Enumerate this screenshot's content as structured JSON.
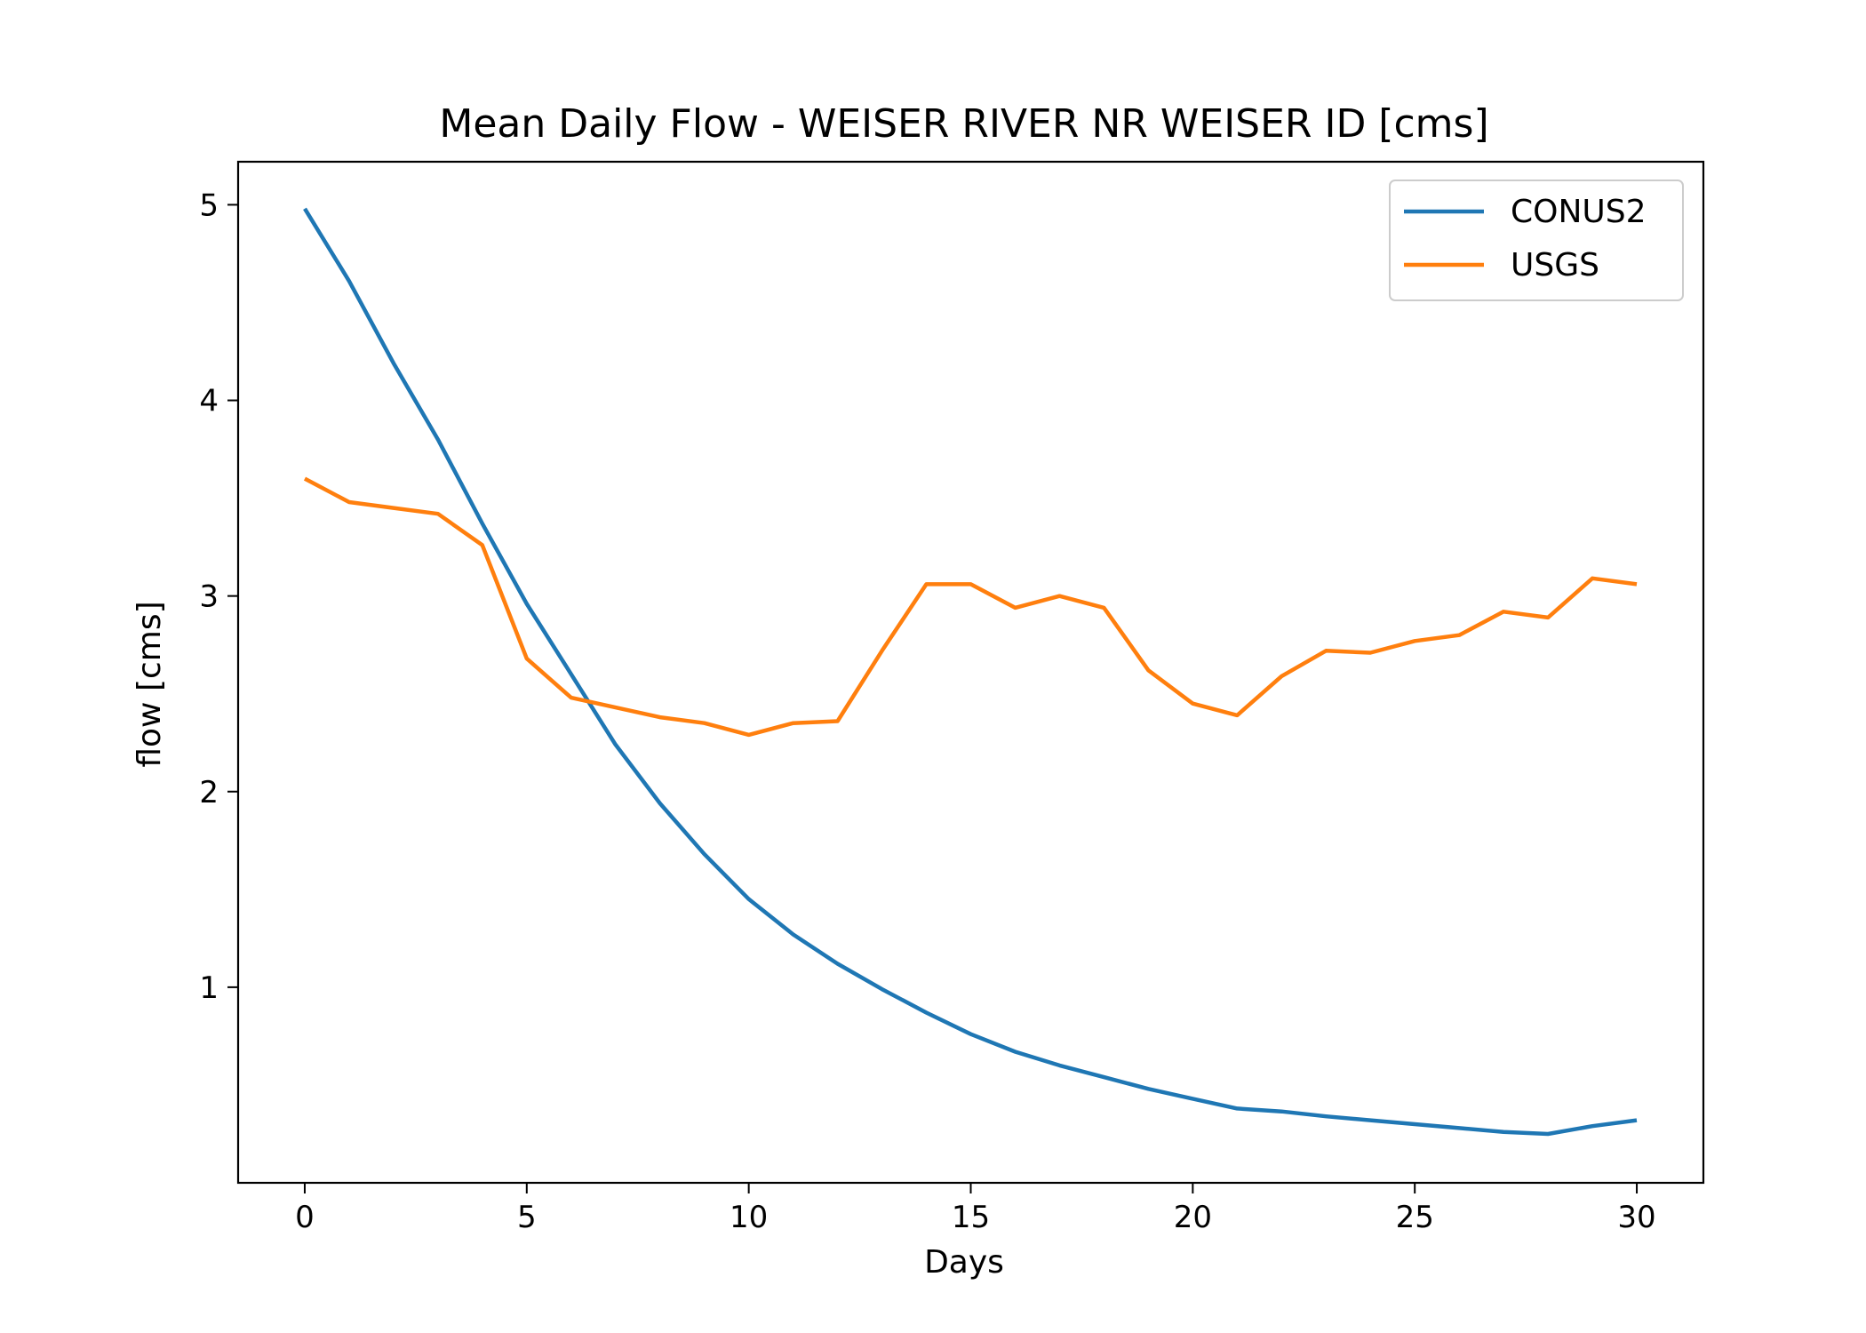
{
  "chart_data": {
    "type": "line",
    "title": "Mean Daily Flow - WEISER RIVER NR WEISER ID [cms]",
    "xlabel": "Days",
    "ylabel": "flow [cms]",
    "xlim": [
      -1.5,
      31.5
    ],
    "ylim": [
      0.0,
      5.22
    ],
    "xticks": [
      0,
      5,
      10,
      15,
      20,
      25,
      30
    ],
    "xtick_labels": [
      "0",
      "5",
      "10",
      "15",
      "20",
      "25",
      "30"
    ],
    "yticks": [
      1,
      2,
      3,
      4,
      5
    ],
    "ytick_labels": [
      "1",
      "2",
      "3",
      "4",
      "5"
    ],
    "grid": false,
    "legend": {
      "placement": "upper-right"
    },
    "x": [
      0,
      1,
      2,
      3,
      4,
      5,
      6,
      7,
      8,
      9,
      10,
      11,
      12,
      13,
      14,
      15,
      16,
      17,
      18,
      19,
      20,
      21,
      22,
      23,
      24,
      25,
      26,
      27,
      28,
      29,
      30
    ],
    "series": [
      {
        "name": "CONUS2",
        "color": "#1f77b4",
        "values": [
          4.98,
          4.61,
          4.19,
          3.8,
          3.37,
          2.96,
          2.6,
          2.24,
          1.94,
          1.68,
          1.45,
          1.27,
          1.12,
          0.99,
          0.87,
          0.76,
          0.67,
          0.6,
          0.54,
          0.48,
          0.43,
          0.38,
          0.365,
          0.34,
          0.32,
          0.3,
          0.28,
          0.26,
          0.25,
          0.29,
          0.32
        ]
      },
      {
        "name": "USGS",
        "color": "#ff7f0e",
        "values": [
          3.6,
          3.48,
          3.45,
          3.42,
          3.26,
          2.68,
          2.48,
          2.43,
          2.38,
          2.35,
          2.29,
          2.35,
          2.36,
          2.72,
          3.06,
          3.06,
          2.94,
          3.0,
          2.94,
          2.62,
          2.45,
          2.39,
          2.59,
          2.72,
          2.71,
          2.77,
          2.8,
          2.92,
          2.89,
          3.09,
          3.06
        ]
      }
    ]
  }
}
